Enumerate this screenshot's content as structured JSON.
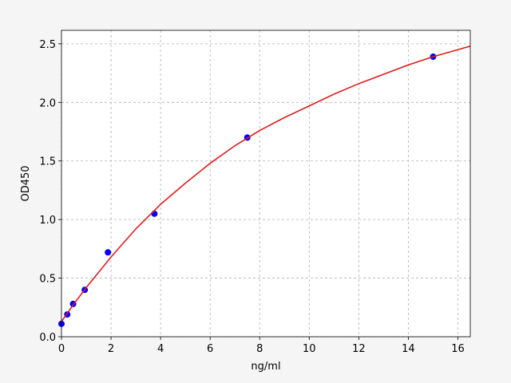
{
  "chart_data": {
    "type": "scatter",
    "xlabel": "ng/ml",
    "ylabel": "OD450",
    "xlim": [
      0,
      16.5
    ],
    "ylim": [
      0,
      2.615
    ],
    "xticks": [
      0,
      2,
      4,
      6,
      8,
      10,
      12,
      14,
      16
    ],
    "yticks": [
      {
        "value": 0,
        "label": "0.0"
      },
      {
        "value": 0.5,
        "label": "0.5"
      },
      {
        "value": 1,
        "label": "1.0"
      },
      {
        "value": 1.5,
        "label": "1.5"
      },
      {
        "value": 2,
        "label": "2.0"
      },
      {
        "value": 2.5,
        "label": "2.5"
      }
    ],
    "grid": true,
    "series": [
      {
        "style": "points",
        "color": "#0000ff",
        "x": [
          0,
          0.234,
          0.469,
          0.938,
          1.875,
          3.75,
          7.5,
          15
        ],
        "values": [
          0.11,
          0.19,
          0.28,
          0.4,
          0.72,
          1.05,
          1.7,
          2.39
        ]
      },
      {
        "style": "line",
        "color": "#e31a1c",
        "x": [
          0,
          0.5,
          1,
          2,
          3,
          4,
          5,
          6,
          7,
          8,
          9,
          10,
          11,
          12,
          13,
          14,
          15,
          16,
          16.5
        ],
        "values": [
          0.13,
          0.28,
          0.42,
          0.68,
          0.92,
          1.13,
          1.31,
          1.48,
          1.63,
          1.76,
          1.87,
          1.97,
          2.07,
          2.16,
          2.24,
          2.32,
          2.39,
          2.45,
          2.48
        ]
      }
    ]
  }
}
